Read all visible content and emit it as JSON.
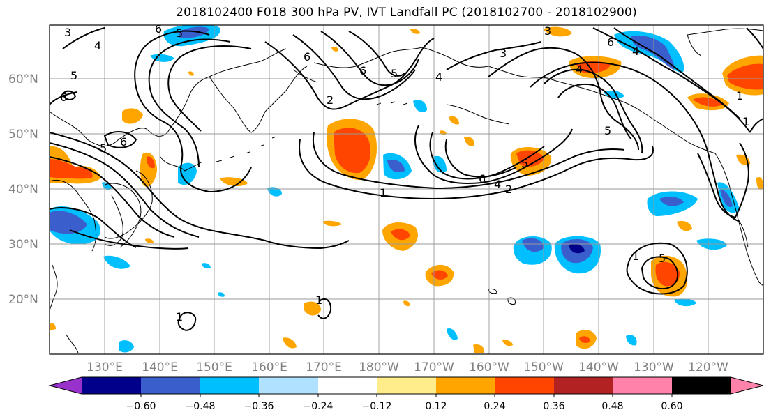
{
  "title": "2018102400 F018 300 hPa PV, IVT Landfall PC (2018102700 - 2018102900)",
  "lat_labels": [
    "60°N",
    "50°N",
    "40°N",
    "30°N",
    "20°N"
  ],
  "lon_labels": [
    "130°E",
    "140°E",
    "150°E",
    "160°E",
    "170°E",
    "180°W",
    "170°W",
    "160°W",
    "150°W",
    "140°W",
    "130°W",
    "120°W"
  ],
  "colorbar": {
    "ticks": [
      "−0.60",
      "−0.48",
      "−0.36",
      "−0.24",
      "−0.12",
      "0.12",
      "0.24",
      "0.36",
      "0.48",
      "0.60"
    ],
    "colors": [
      "#9932cc",
      "#00008b",
      "#3a5fcd",
      "#00bfff",
      "#b0e2ff",
      "#ffffff",
      "#ffec8b",
      "#ffa500",
      "#ff4500",
      "#b22222",
      "#ff82ab"
    ]
  },
  "contour_labels": [
    "3",
    "6",
    "5",
    "4",
    "6",
    "5",
    "5",
    "6",
    "6",
    "5",
    "4",
    "2",
    "3",
    "4",
    "1",
    "3",
    "6",
    "4",
    "6",
    "5",
    "1",
    "5",
    "6",
    "4",
    "2",
    "1",
    "5",
    "1",
    "1",
    "1"
  ]
}
